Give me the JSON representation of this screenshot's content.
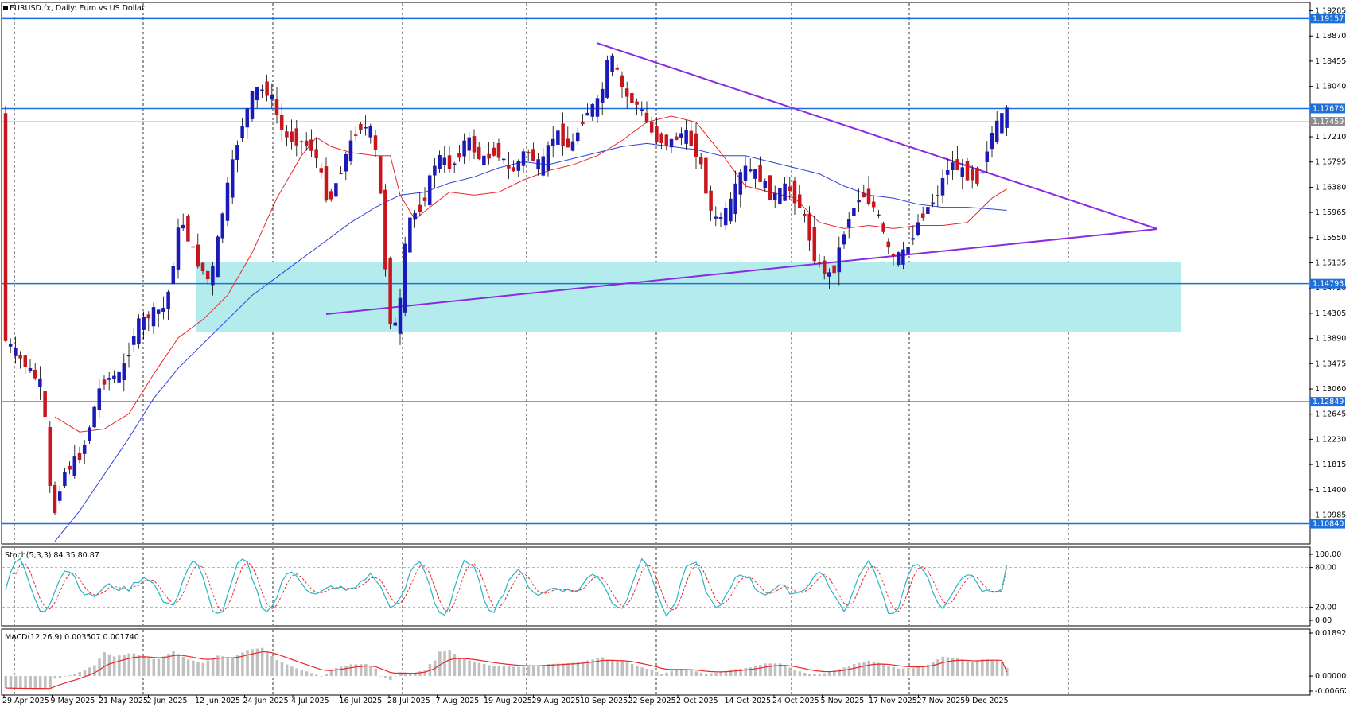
{
  "chart_data": [
    {
      "type": "candlestick",
      "title": "EURUSD.fx, Daily:  Euro vs US Dollar",
      "ylim": [
        1.1052,
        1.1941
      ],
      "y_ticks": [
        "1.19285",
        "1.18870",
        "1.18455",
        "1.18040",
        "1.17210",
        "1.16795",
        "1.16380",
        "1.15965",
        "1.15550",
        "1.15135",
        "1.14720",
        "1.14305",
        "1.13890",
        "1.13475",
        "1.13060",
        "1.12645",
        "1.12230",
        "1.11815",
        "1.11400",
        "1.10985"
      ],
      "grid": "vertical dashed",
      "date_labels": [
        "29 Apr 2025",
        "9 May 2025",
        "21 May 2025",
        "2 Jun 2025",
        "12 Jun 2025",
        "24 Jun 2025",
        "4 Jul 2025",
        "16 Jul 2025",
        "28 Jul 2025",
        "7 Aug 2025",
        "19 Aug 2025",
        "29 Aug 2025",
        "10 Sep 2025",
        "22 Sep 2025",
        "2 Oct 2025",
        "14 Oct 2025",
        "24 Oct 2025",
        "5 Nov 2025",
        "17 Nov 2025",
        "27 Nov 2025",
        "9 Dec 2025"
      ],
      "horizontal_levels": [
        1.19157,
        1.17676,
        1.14793,
        1.12849,
        1.1084
      ],
      "current_price": 1.17459,
      "support_zone": [
        1.14,
        1.1515
      ],
      "trendlines": [
        {
          "from": {
            "index": 124,
            "price": 1.1865
          },
          "to": {
            "index": 241,
            "price": 1.154
          }
        },
        {
          "from": {
            "index": 68,
            "price": 1.1392
          },
          "to": {
            "index": 241,
            "price": 1.154
          }
        }
      ],
      "moving_averages": [
        {
          "name": "fast",
          "color": "#e8272a",
          "values": [
            [
              10,
              1.126
            ],
            [
              15,
              1.1235
            ],
            [
              20,
              1.124
            ],
            [
              25,
              1.1265
            ],
            [
              30,
              1.133
            ],
            [
              35,
              1.139
            ],
            [
              40,
              1.142
            ],
            [
              45,
              1.146
            ],
            [
              50,
              1.153
            ],
            [
              55,
              1.162
            ],
            [
              60,
              1.169
            ],
            [
              63,
              1.172
            ],
            [
              66,
              1.1705
            ],
            [
              70,
              1.1695
            ],
            [
              75,
              1.169
            ],
            [
              78,
              1.169
            ],
            [
              80,
              1.1625
            ],
            [
              83,
              1.1585
            ],
            [
              86,
              1.1605
            ],
            [
              90,
              1.163
            ],
            [
              95,
              1.1625
            ],
            [
              100,
              1.163
            ],
            [
              105,
              1.165
            ],
            [
              110,
              1.1665
            ],
            [
              115,
              1.1675
            ],
            [
              120,
              1.169
            ],
            [
              125,
              1.1715
            ],
            [
              130,
              1.1745
            ],
            [
              135,
              1.1755
            ],
            [
              140,
              1.1745
            ],
            [
              145,
              1.1695
            ],
            [
              150,
              1.164
            ],
            [
              155,
              1.163
            ],
            [
              160,
              1.162
            ],
            [
              165,
              1.158
            ],
            [
              170,
              1.157
            ],
            [
              175,
              1.1575
            ],
            [
              180,
              1.157
            ],
            [
              185,
              1.1575
            ],
            [
              190,
              1.1575
            ],
            [
              195,
              1.158
            ],
            [
              200,
              1.162
            ],
            [
              203,
              1.1635
            ]
          ]
        },
        {
          "name": "slow",
          "color": "#3140d8",
          "values": [
            [
              10,
              1.1055
            ],
            [
              15,
              1.1105
            ],
            [
              20,
              1.1165
            ],
            [
              25,
              1.1225
            ],
            [
              30,
              1.129
            ],
            [
              35,
              1.134
            ],
            [
              40,
              1.138
            ],
            [
              45,
              1.142
            ],
            [
              50,
              1.146
            ],
            [
              55,
              1.149
            ],
            [
              60,
              1.152
            ],
            [
              65,
              1.155
            ],
            [
              70,
              1.158
            ],
            [
              75,
              1.1605
            ],
            [
              80,
              1.1625
            ],
            [
              85,
              1.163
            ],
            [
              90,
              1.1645
            ],
            [
              95,
              1.1655
            ],
            [
              100,
              1.167
            ],
            [
              105,
              1.168
            ],
            [
              110,
              1.1675
            ],
            [
              115,
              1.1685
            ],
            [
              120,
              1.1695
            ],
            [
              125,
              1.1705
            ],
            [
              130,
              1.171
            ],
            [
              135,
              1.1705
            ],
            [
              140,
              1.17
            ],
            [
              145,
              1.169
            ],
            [
              150,
              1.169
            ],
            [
              155,
              1.168
            ],
            [
              160,
              1.167
            ],
            [
              165,
              1.166
            ],
            [
              170,
              1.164
            ],
            [
              175,
              1.1625
            ],
            [
              180,
              1.162
            ],
            [
              185,
              1.161
            ],
            [
              190,
              1.1605
            ],
            [
              195,
              1.1605
            ],
            [
              200,
              1.1602
            ],
            [
              203,
              1.16
            ]
          ]
        }
      ]
    },
    {
      "type": "line",
      "title": "Stoch(5,3,3) 84.35 80.87",
      "ylim": [
        0,
        100
      ],
      "y_ticks": [
        "100.00",
        "80.00",
        "20.00",
        "0.00"
      ],
      "reference_levels": [
        80,
        20
      ],
      "series": [
        {
          "name": "main",
          "color": "#26b5c6"
        },
        {
          "name": "signal",
          "color": "#e8272a",
          "style": "dashed"
        }
      ]
    },
    {
      "type": "bar",
      "title": "MACD(12,26,9) 0.003507 0.001740",
      "ylim": [
        -0.006624,
        0.018926
      ],
      "y_ticks": [
        "0.018926",
        "0.000000",
        "-0.006624"
      ],
      "series": [
        {
          "name": "macd",
          "color": "#c0c0c0",
          "style": "histogram"
        },
        {
          "name": "signal",
          "color": "#e8272a",
          "style": "line"
        }
      ]
    }
  ]
}
